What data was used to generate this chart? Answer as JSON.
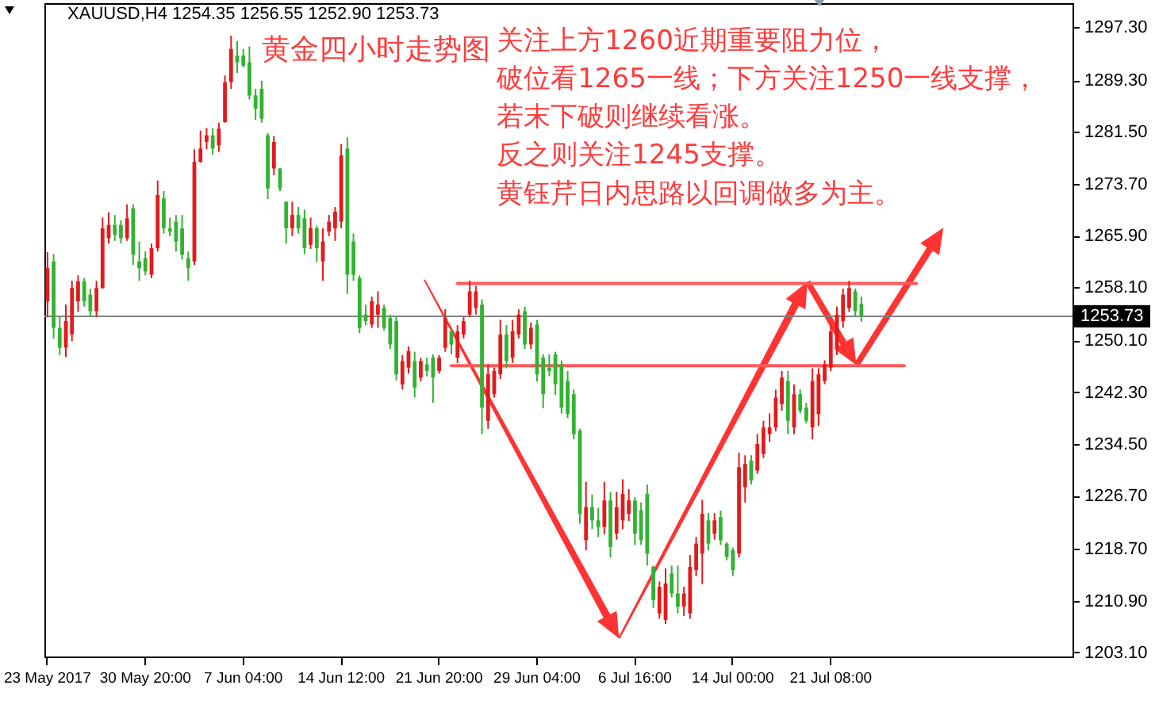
{
  "chart_data": {
    "type": "candlestick",
    "title": "黄金四小时走势图",
    "subtitle": "XAUUSD,H4 1254.35 1256.55 1252.90 1253.73",
    "annotations": [
      "关注上方1260近期重要阻力位，",
      "破位看1265一线；下方关注1250一线支撑，",
      "若末下破则继续看涨。",
      "反之则关注1245支撑。",
      "黄钰芹日内思路以回调做多为主。"
    ],
    "categories": [
      "23 May 2017",
      null,
      null,
      null,
      null,
      null,
      null,
      null,
      null,
      null,
      null,
      null,
      null,
      null,
      null,
      null,
      "30 May 20:00",
      null,
      null,
      null,
      null,
      null,
      null,
      null,
      null,
      null,
      null,
      null,
      null,
      null,
      null,
      null,
      "7 Jun 04:00",
      null,
      null,
      null,
      null,
      null,
      null,
      null,
      null,
      null,
      null,
      null,
      null,
      null,
      null,
      null,
      "14 Jun 12:00",
      null,
      null,
      null,
      null,
      null,
      null,
      null,
      null,
      null,
      null,
      null,
      null,
      null,
      null,
      null,
      "21 Jun 20:00",
      null,
      null,
      null,
      null,
      null,
      null,
      null,
      null,
      null,
      null,
      null,
      null,
      null,
      null,
      null,
      "29 Jun 04:00",
      null,
      null,
      null,
      null,
      null,
      null,
      null,
      null,
      null,
      null,
      null,
      null,
      null,
      null,
      null,
      "6 Jul 16:00",
      null,
      null,
      null,
      null,
      null,
      null,
      null,
      null,
      null,
      null,
      null,
      null,
      null,
      null,
      null,
      "14 Jul 00:00",
      null,
      null,
      null,
      null,
      null,
      null,
      null,
      null,
      null,
      null,
      null,
      null,
      null,
      null,
      null,
      "21 Jul 08:00",
      null,
      null,
      null,
      null,
      null,
      null,
      null,
      null,
      null,
      null,
      null,
      null,
      null,
      null,
      null,
      null,
      null,
      null,
      null,
      null,
      null,
      null,
      null,
      null,
      null,
      null,
      null,
      null,
      null,
      null,
      null,
      null,
      null,
      null,
      null,
      null,
      null,
      null,
      null
    ],
    "ohlc": [
      [
        1256,
        1263.4,
        1253.6,
        1261
      ],
      [
        1262,
        1263.1,
        1250.4,
        1252
      ],
      [
        1252,
        1253.8,
        1247.9,
        1249
      ],
      [
        1249,
        1255.5,
        1247.6,
        1253
      ],
      [
        1251,
        1259.1,
        1250.0,
        1258
      ],
      [
        1256,
        1259.9,
        1254.4,
        1259
      ],
      [
        1259,
        1259.5,
        1255.2,
        1256
      ],
      [
        1257,
        1257.9,
        1253.6,
        1254.5
      ],
      [
        1254.5,
        1259.1,
        1253.6,
        1258
      ],
      [
        1258,
        1268.6,
        1257.9,
        1267
      ],
      [
        1265.5,
        1269.4,
        1264.7,
        1267.5
      ],
      [
        1267.5,
        1269.0,
        1265.1,
        1266
      ],
      [
        1267.5,
        1268.2,
        1264.7,
        1265.5
      ],
      [
        1265.5,
        1270.6,
        1265.1,
        1268.5
      ],
      [
        1270,
        1270.6,
        1261.5,
        1263
      ],
      [
        1262,
        1265.0,
        1259.1,
        1261
      ],
      [
        1262.5,
        1263.5,
        1259.9,
        1260.5
      ],
      [
        1260,
        1264.7,
        1259.5,
        1264
      ],
      [
        1264,
        1274.2,
        1263.5,
        1272
      ],
      [
        1271.5,
        1272.6,
        1266.2,
        1267
      ],
      [
        1267,
        1268.6,
        1265.8,
        1266.5
      ],
      [
        1268,
        1269.0,
        1263.5,
        1265
      ],
      [
        1267,
        1269.0,
        1262.3,
        1263
      ],
      [
        1262.5,
        1263.5,
        1259.1,
        1261
      ],
      [
        1262,
        1278.9,
        1261.5,
        1277
      ],
      [
        1277,
        1281.7,
        1276.9,
        1279
      ],
      [
        1280,
        1282.1,
        1278.9,
        1281
      ],
      [
        1281,
        1282.1,
        1278.1,
        1279
      ],
      [
        1279.5,
        1282.9,
        1278.5,
        1282
      ],
      [
        1283,
        1290.0,
        1282.9,
        1289
      ],
      [
        1289,
        1296.0,
        1288.0,
        1294
      ],
      [
        1293,
        1295.2,
        1290.4,
        1292
      ],
      [
        1293,
        1294.0,
        1291.2,
        1291.5
      ],
      [
        1292,
        1294.4,
        1286.4,
        1287
      ],
      [
        1287,
        1288.0,
        1283.3,
        1285
      ],
      [
        1288,
        1289.2,
        1282.9,
        1283.5
      ],
      [
        1281,
        1281.3,
        1271.4,
        1273
      ],
      [
        1276,
        1280.9,
        1275.0,
        1280
      ],
      [
        1276,
        1276.1,
        1272.6,
        1273
      ],
      [
        1271,
        1271.0,
        1264.7,
        1267
      ],
      [
        1267,
        1271.0,
        1265.8,
        1269
      ],
      [
        1269,
        1270.2,
        1266.2,
        1267
      ],
      [
        1268.5,
        1269.8,
        1263.1,
        1264
      ],
      [
        1264.5,
        1268.6,
        1263.9,
        1267
      ],
      [
        1267,
        1267.4,
        1261.9,
        1264
      ],
      [
        1262,
        1267.0,
        1259.1,
        1265
      ],
      [
        1266.5,
        1269.0,
        1265.8,
        1268
      ],
      [
        1267,
        1270.2,
        1265.1,
        1269.5
      ],
      [
        1268,
        1279.7,
        1267.0,
        1278
      ],
      [
        1279,
        1280.7,
        1257.1,
        1260
      ],
      [
        1265,
        1266.2,
        1259.1,
        1260
      ],
      [
        1259.5,
        1259.9,
        1251.2,
        1252
      ],
      [
        1254,
        1255.5,
        1252.4,
        1253
      ],
      [
        1252.5,
        1256.7,
        1252.0,
        1256
      ],
      [
        1254,
        1257.5,
        1252.0,
        1255.5
      ],
      [
        1255,
        1255.5,
        1251.6,
        1252
      ],
      [
        1253.5,
        1254.0,
        1248.8,
        1249.5
      ],
      [
        1253,
        1253.6,
        1244.1,
        1245
      ],
      [
        1243.5,
        1247.9,
        1242.7,
        1247
      ],
      [
        1246,
        1249.2,
        1245.1,
        1248.5
      ],
      [
        1247,
        1248.4,
        1241.5,
        1243
      ],
      [
        1244.5,
        1247.5,
        1243.9,
        1247
      ],
      [
        1246.5,
        1247.5,
        1244.7,
        1245.5
      ],
      [
        1247.5,
        1248.0,
        1240.7,
        1244.5
      ],
      [
        1245.5,
        1247.9,
        1245.1,
        1247.5
      ],
      [
        1249,
        1254.8,
        1248.4,
        1253.5
      ],
      [
        1251.5,
        1252.0,
        1248.0,
        1249.5
      ],
      [
        1247.5,
        1252.4,
        1246.7,
        1251.5
      ],
      [
        1251,
        1253.6,
        1250.4,
        1253
      ],
      [
        1254,
        1259.1,
        1253.6,
        1257.5
      ],
      [
        1255,
        1258.3,
        1254.0,
        1257.5
      ],
      [
        1255.5,
        1256.3,
        1236.0,
        1240
      ],
      [
        1238,
        1246.5,
        1236.8,
        1245
      ],
      [
        1242,
        1246.0,
        1241.5,
        1245.5
      ],
      [
        1245,
        1253.2,
        1244.3,
        1251
      ],
      [
        1251,
        1252.4,
        1245.9,
        1247
      ],
      [
        1247.5,
        1253.2,
        1246.7,
        1251.5
      ],
      [
        1251,
        1254.8,
        1250.4,
        1254
      ],
      [
        1254.5,
        1255.2,
        1248.8,
        1249.5
      ],
      [
        1249.5,
        1252.8,
        1248.8,
        1252
      ],
      [
        1252.5,
        1253.2,
        1243.9,
        1245
      ],
      [
        1247.5,
        1248.0,
        1239.9,
        1242
      ],
      [
        1246,
        1248.0,
        1244.7,
        1245.5
      ],
      [
        1248,
        1248.4,
        1241.9,
        1243.5
      ],
      [
        1246.5,
        1247.1,
        1239.1,
        1240
      ],
      [
        1244,
        1245.5,
        1238.4,
        1239
      ],
      [
        1242,
        1242.7,
        1235.2,
        1236
      ],
      [
        1236.5,
        1236.8,
        1222.5,
        1224
      ],
      [
        1220,
        1228.8,
        1218.5,
        1225
      ],
      [
        1225,
        1226.9,
        1221.7,
        1223
      ],
      [
        1223,
        1224.9,
        1220.5,
        1222
      ],
      [
        1222,
        1228.8,
        1220.9,
        1226
      ],
      [
        1226,
        1227.3,
        1217.4,
        1219
      ],
      [
        1221,
        1227.3,
        1220.1,
        1225
      ],
      [
        1223,
        1229.2,
        1221.7,
        1227
      ],
      [
        1224,
        1227.7,
        1222.9,
        1226
      ],
      [
        1226,
        1226.5,
        1219.3,
        1221
      ],
      [
        1224.5,
        1225.7,
        1219.3,
        1220
      ],
      [
        1227,
        1228.4,
        1216.2,
        1218
      ],
      [
        1216,
        1216.2,
        1209.8,
        1211
      ],
      [
        1209,
        1213.8,
        1208.2,
        1213
      ],
      [
        1208,
        1215.8,
        1207.4,
        1213.5
      ],
      [
        1215,
        1216.2,
        1211.4,
        1212
      ],
      [
        1212,
        1216.2,
        1209.0,
        1210
      ],
      [
        1210,
        1213.0,
        1208.6,
        1212
      ],
      [
        1209,
        1217.8,
        1208.2,
        1216
      ],
      [
        1215.5,
        1220.5,
        1214.6,
        1219.5
      ],
      [
        1218,
        1226.1,
        1213.4,
        1224
      ],
      [
        1223,
        1224.1,
        1218.5,
        1219.5
      ],
      [
        1221,
        1224.1,
        1220.1,
        1223
      ],
      [
        1223.5,
        1224.5,
        1219.3,
        1220
      ],
      [
        1219.5,
        1219.7,
        1217.0,
        1217.5
      ],
      [
        1218.5,
        1218.9,
        1214.6,
        1215.5
      ],
      [
        1218,
        1233.2,
        1217.4,
        1231
      ],
      [
        1228,
        1232.8,
        1225.7,
        1231.5
      ],
      [
        1232,
        1232.8,
        1228.4,
        1229
      ],
      [
        1230.5,
        1236.0,
        1230.0,
        1234.5
      ],
      [
        1233,
        1238.0,
        1232.4,
        1237
      ],
      [
        1236,
        1239.1,
        1234.8,
        1237
      ],
      [
        1237,
        1242.7,
        1236.4,
        1241.5
      ],
      [
        1240.5,
        1245.5,
        1239.5,
        1244.5
      ],
      [
        1244,
        1245.5,
        1236.0,
        1238
      ],
      [
        1237,
        1243.5,
        1236.0,
        1242
      ],
      [
        1242,
        1242.7,
        1239.1,
        1239.5
      ],
      [
        1240,
        1240.7,
        1237.6,
        1238
      ],
      [
        1237,
        1245.9,
        1235.2,
        1244
      ],
      [
        1239,
        1245.9,
        1237.2,
        1245
      ],
      [
        1244,
        1247.1,
        1243.5,
        1246.5
      ],
      [
        1246,
        1252.4,
        1245.5,
        1251.5
      ],
      [
        1249,
        1255.2,
        1247.9,
        1254
      ],
      [
        1253,
        1257.9,
        1252.0,
        1257
      ],
      [
        1255,
        1259.1,
        1254.4,
        1258
      ],
      [
        1257.5,
        1257.9,
        1253.6,
        1254.5
      ],
      [
        1255.6,
        1256.7,
        1252.9,
        1253.73
      ],
      null,
      null,
      null,
      null,
      null,
      null,
      null,
      null,
      null,
      null,
      null,
      null,
      null,
      null,
      null,
      null,
      null,
      null,
      null,
      null,
      null,
      null,
      null,
      null,
      null,
      null,
      null,
      null,
      null,
      null,
      null,
      null,
      null,
      null
    ],
    "colors": [
      "#e31a1c",
      "#32b232",
      "#32b232",
      "#e31a1c",
      "#e31a1c",
      "#e31a1c",
      "#32b232",
      "#32b232",
      "#e31a1c",
      "#e31a1c",
      "#e31a1c",
      "#32b232",
      "#32b232",
      "#e31a1c",
      "#32b232",
      "#32b232",
      "#32b232",
      "#e31a1c",
      "#e31a1c",
      "#32b232",
      "#32b232",
      "#32b232",
      "#32b232",
      "#32b232",
      "#e31a1c",
      "#e31a1c",
      "#e31a1c",
      "#32b232",
      "#e31a1c",
      "#e31a1c",
      "#e31a1c",
      "#32b232",
      "#32b232",
      "#32b232",
      "#32b232",
      "#32b232",
      "#32b232",
      "#e31a1c",
      "#32b232",
      "#32b232",
      "#e31a1c",
      "#32b232",
      "#32b232",
      "#e31a1c",
      "#32b232",
      "#e31a1c",
      "#e31a1c",
      "#e31a1c",
      "#e31a1c",
      "#32b232",
      "#32b232",
      "#32b232",
      "#32b232",
      "#e31a1c",
      "#e31a1c",
      "#32b232",
      "#32b232",
      "#32b232",
      "#e31a1c",
      "#e31a1c",
      "#32b232",
      "#e31a1c",
      "#32b232",
      "#32b232",
      "#e31a1c",
      "#e31a1c",
      "#32b232",
      "#e31a1c",
      "#e31a1c",
      "#e31a1c",
      "#e31a1c",
      "#32b232",
      "#e31a1c",
      "#e31a1c",
      "#e31a1c",
      "#32b232",
      "#e31a1c",
      "#e31a1c",
      "#32b232",
      "#e31a1c",
      "#32b232",
      "#32b232",
      "#32b232",
      "#32b232",
      "#32b232",
      "#32b232",
      "#32b232",
      "#32b232",
      "#e31a1c",
      "#32b232",
      "#32b232",
      "#e31a1c",
      "#32b232",
      "#e31a1c",
      "#e31a1c",
      "#e31a1c",
      "#32b232",
      "#32b232",
      "#32b232",
      "#32b232",
      "#e31a1c",
      "#e31a1c",
      "#32b232",
      "#32b232",
      "#e31a1c",
      "#e31a1c",
      "#e31a1c",
      "#e31a1c",
      "#32b232",
      "#e31a1c",
      "#32b232",
      "#32b232",
      "#32b232",
      "#e31a1c",
      "#e31a1c",
      "#32b232",
      "#e31a1c",
      "#e31a1c",
      "#e31a1c",
      "#e31a1c",
      "#e31a1c",
      "#32b232",
      "#e31a1c",
      "#32b232",
      "#32b232",
      "#e31a1c",
      "#e31a1c",
      "#e31a1c",
      "#e31a1c",
      "#e31a1c",
      "#e31a1c",
      "#e31a1c",
      "#32b232",
      "#32b232",
      null,
      null,
      null,
      null,
      null,
      null,
      null,
      null,
      null,
      null,
      null,
      null,
      null,
      null,
      null,
      null,
      null,
      null,
      null,
      null,
      null,
      null,
      null,
      null,
      null,
      null,
      null,
      null,
      null,
      null,
      null,
      null,
      null,
      null
    ],
    "series": [
      {
        "type": "line",
        "color": "#ff5a5a",
        "values": [
          null,
          null,
          null,
          null,
          null,
          null,
          null,
          null,
          null,
          null,
          null,
          null,
          null,
          null,
          null,
          null,
          null,
          null,
          null,
          null,
          null,
          null,
          null,
          null,
          null,
          null,
          null,
          null,
          null,
          null,
          null,
          null,
          null,
          null,
          null,
          null,
          null,
          null,
          null,
          null,
          null,
          null,
          null,
          null,
          null,
          null,
          null,
          null,
          null,
          null,
          null,
          null,
          null,
          null,
          null,
          null,
          null,
          null,
          null,
          null,
          null,
          null,
          null,
          null,
          null,
          null,
          null,
          1258.7,
          1258.7,
          1258.7,
          1258.7,
          1258.7,
          1258.7,
          1258.7,
          1258.7,
          1258.7,
          1258.7,
          1258.7,
          1258.7,
          1258.7,
          1258.7,
          1258.7,
          1258.7,
          1258.7,
          1258.7,
          1258.7,
          1258.7,
          1258.7,
          1258.7,
          1258.7,
          1258.7,
          1258.7,
          1258.7,
          1258.7,
          1258.7,
          1258.7,
          1258.7,
          1258.7,
          1258.7,
          1258.7,
          1258.7,
          1258.7,
          1258.7,
          1258.7,
          1258.7,
          1258.7,
          1258.7,
          1258.7,
          1258.7,
          1258.7,
          1258.7,
          1258.7,
          1258.7,
          1258.7,
          1258.7,
          1258.7,
          1258.7,
          1258.7,
          1258.7,
          1258.7,
          1258.7,
          1258.7,
          1258.7,
          1258.7,
          1258.7,
          1258.7,
          1258.7,
          1258.7,
          1258.7,
          1258.7,
          1258.7,
          1258.7,
          1258.7,
          1258.7,
          1258.7,
          1258.7,
          1258.7,
          1258.7,
          1258.7,
          1258.7,
          1258.7,
          1258.7,
          1258.7,
          null,
          null,
          null,
          null,
          null,
          null,
          null,
          null,
          null,
          null,
          null,
          null,
          null,
          null,
          null,
          null,
          null,
          null,
          null,
          null,
          null,
          null,
          null,
          null,
          null
        ]
      },
      {
        "type": "line",
        "color": "#ff5a5a",
        "values": [
          null,
          null,
          null,
          null,
          null,
          null,
          null,
          null,
          null,
          null,
          null,
          null,
          null,
          null,
          null,
          null,
          null,
          null,
          null,
          null,
          null,
          null,
          null,
          null,
          null,
          null,
          null,
          null,
          null,
          null,
          null,
          null,
          null,
          null,
          null,
          null,
          null,
          null,
          null,
          null,
          null,
          null,
          null,
          null,
          null,
          null,
          null,
          null,
          null,
          null,
          null,
          null,
          null,
          null,
          null,
          null,
          null,
          null,
          null,
          null,
          null,
          null,
          null,
          null,
          null,
          null,
          1246.3,
          1246.3,
          1246.3,
          1246.3,
          1246.3,
          1246.3,
          1246.3,
          1246.3,
          1246.3,
          1246.3,
          1246.3,
          1246.3,
          1246.3,
          1246.3,
          1246.3,
          1246.3,
          1246.3,
          1246.3,
          1246.3,
          1246.3,
          1246.3,
          1246.3,
          1246.3,
          1246.3,
          1246.3,
          1246.3,
          1246.3,
          1246.3,
          1246.3,
          1246.3,
          1246.3,
          1246.3,
          1246.3,
          1246.3,
          1246.3,
          1246.3,
          1246.3,
          1246.3,
          1246.3,
          1246.3,
          1246.3,
          1246.3,
          1246.3,
          1246.3,
          1246.3,
          1246.3,
          1246.3,
          1246.3,
          1246.3,
          1246.3,
          1246.3,
          1246.3,
          1246.3,
          1246.3,
          1246.3,
          1246.3,
          1246.3,
          1246.3,
          1246.3,
          1246.3,
          1246.3,
          1246.3,
          1246.3,
          1246.3,
          1246.3,
          1246.3,
          1246.3,
          1246.3,
          1246.3,
          1246.3,
          1246.3,
          1246.3,
          1246.3,
          1246.3,
          1246.3,
          null,
          null,
          null,
          null,
          null,
          null,
          null,
          null,
          null,
          null,
          null,
          null,
          null,
          null,
          null,
          null,
          null,
          null,
          null,
          null,
          null,
          null,
          null,
          null,
          null,
          null,
          null
        ]
      }
    ],
    "ylim": [
      1202.5,
      1300.9
    ],
    "yticks": [
      {
        "value": 1297.3,
        "label": "1297.30"
      },
      {
        "value": 1289.3,
        "label": "1289.30"
      },
      {
        "value": 1281.5,
        "label": "1281.50"
      },
      {
        "value": 1273.7,
        "label": "1273.70"
      },
      {
        "value": 1265.9,
        "label": "1265.90"
      },
      {
        "value": 1258.1,
        "label": "1258.10"
      },
      {
        "value": 1250.1,
        "label": "1250.10"
      },
      {
        "value": 1242.3,
        "label": "1242.30"
      },
      {
        "value": 1234.5,
        "label": "1234.50"
      },
      {
        "value": 1226.7,
        "label": "1226.70"
      },
      {
        "value": 1218.7,
        "label": "1218.70"
      },
      {
        "value": 1210.9,
        "label": "1210.90"
      },
      {
        "value": 1203.1,
        "label": "1203.10"
      }
    ],
    "ref_lines": [
      {
        "axis": "y",
        "value": 1253.73,
        "label": "1253.73",
        "color": "#808080"
      }
    ]
  }
}
